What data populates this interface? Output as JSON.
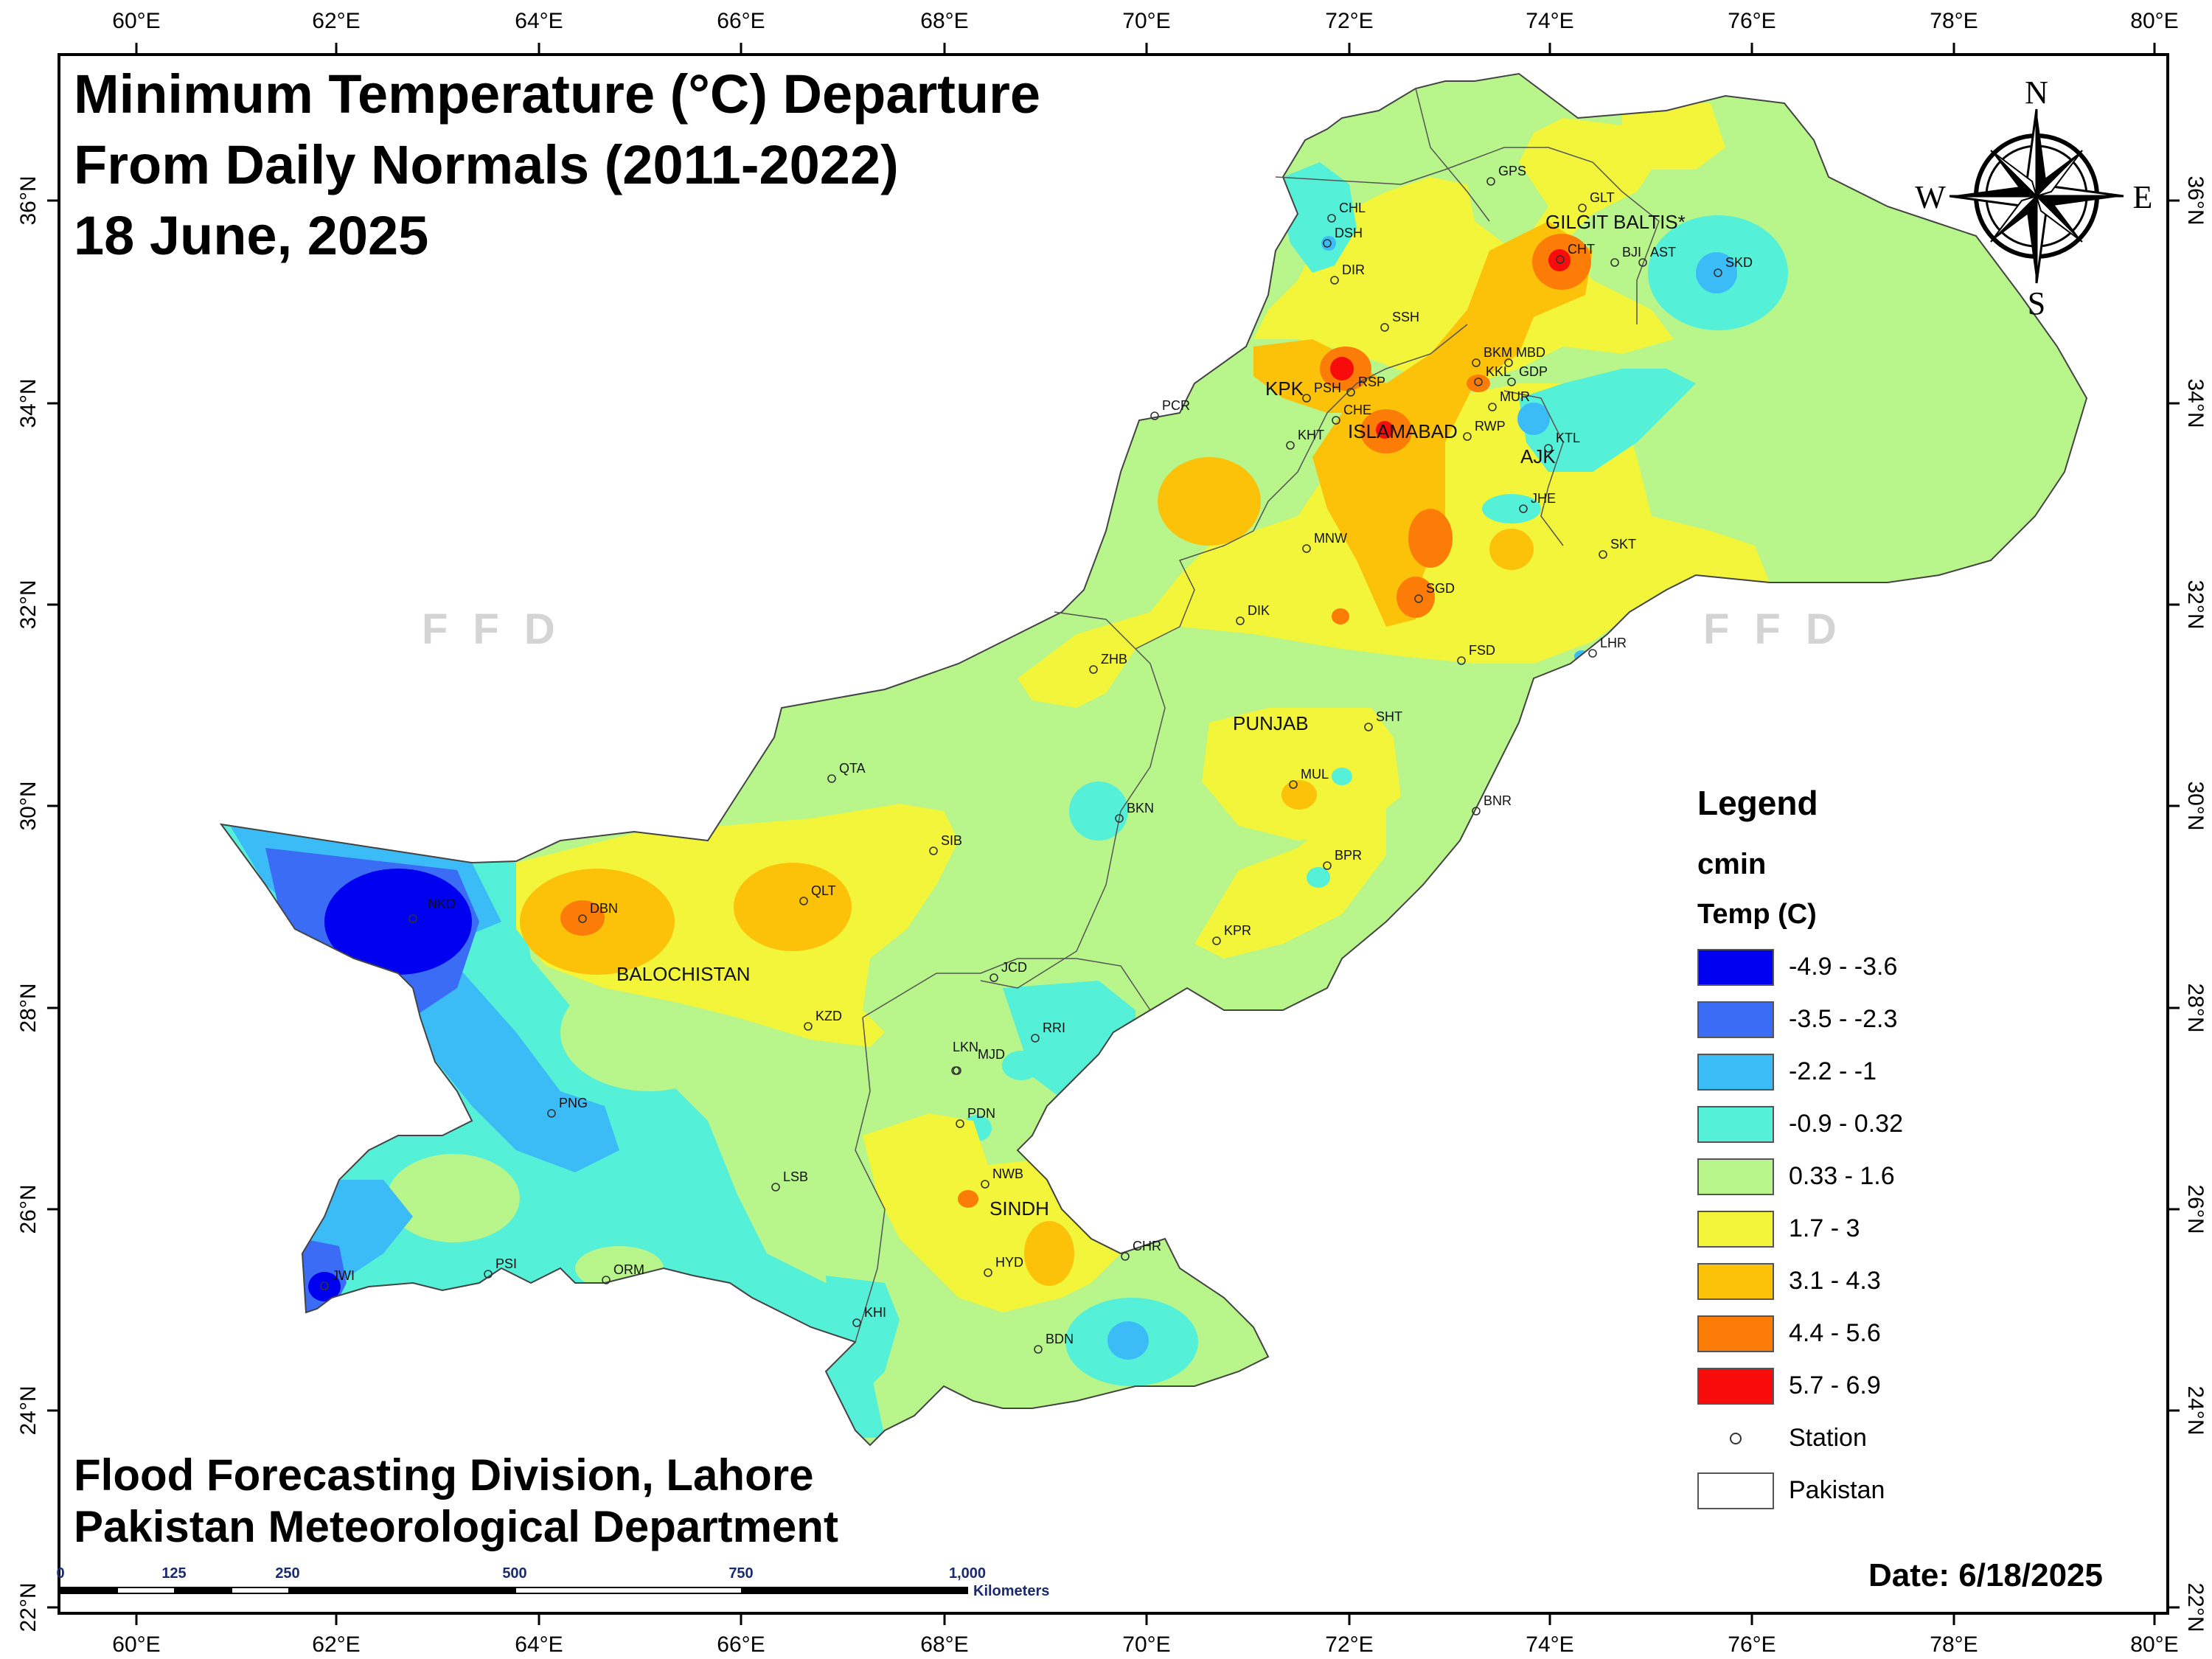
{
  "title_lines": [
    "Minimum Temperature (°C) Departure",
    "From Daily Normals (2011-2022)",
    "18 June, 2025"
  ],
  "credits": [
    "Flood Forecasting Division, Lahore",
    "Pakistan Meteorological Department"
  ],
  "date_label": "Date: 6/18/2025",
  "watermark": "FFD",
  "axes": {
    "lon_labels": [
      "60°E",
      "62°E",
      "64°E",
      "66°E",
      "68°E",
      "70°E",
      "72°E",
      "74°E",
      "76°E",
      "78°E",
      "80°E"
    ],
    "lat_labels": [
      "36°N",
      "34°N",
      "32°N",
      "30°N",
      "28°N",
      "26°N",
      "24°N",
      "22°N"
    ]
  },
  "north_arrow": {
    "n": "N",
    "s": "S",
    "e": "E",
    "w": "W"
  },
  "legend": {
    "title": "Legend",
    "field": "cmin",
    "unit": "Temp (C)",
    "classes": [
      {
        "label": "-4.9 - -3.6",
        "color": "#0000f0"
      },
      {
        "label": "-3.5 - -2.3",
        "color": "#3a6cf5"
      },
      {
        "label": "-2.2 - -1",
        "color": "#3cbcf6"
      },
      {
        "label": "-0.9 - 0.32",
        "color": "#55f0d8"
      },
      {
        "label": "0.33 - 1.6",
        "color": "#b8f58a"
      },
      {
        "label": "1.7 - 3",
        "color": "#f2f53a"
      },
      {
        "label": "3.1 - 4.3",
        "color": "#fcc20a"
      },
      {
        "label": "4.4 - 5.6",
        "color": "#fb7d08"
      },
      {
        "label": "5.7 - 6.9",
        "color": "#f80b0b"
      }
    ],
    "station_label": "Station",
    "boundary_label": "Pakistan"
  },
  "scale_bar": {
    "labels": [
      "0",
      "125",
      "250",
      "500",
      "750",
      "1,000"
    ],
    "unit": "Kilometers"
  },
  "regions": [
    "GILGIT BALTIS*",
    "KPK",
    "ISLAMABAD",
    "AJK",
    "PUNJAB",
    "BALOCHISTAN",
    "SINDH"
  ],
  "stations": [
    "GPS",
    "GLT",
    "CHL",
    "DSH",
    "CHT",
    "BJI",
    "AST",
    "SKD",
    "DIR",
    "SSH",
    "BKM",
    "MBD",
    "KKL",
    "GDP",
    "PSH",
    "RSP",
    "CHE",
    "MUR",
    "RWP",
    "KTL",
    "PCR",
    "KHT",
    "JHE",
    "MNW",
    "SKT",
    "SGD",
    "DIK",
    "FSD",
    "LHR",
    "ZHB",
    "SHT",
    "QTA",
    "MUL",
    "BKN",
    "BNR",
    "SIB",
    "BPR",
    "QLT",
    "DBN",
    "NKD",
    "KPR",
    "JCD",
    "KZD",
    "LKN",
    "RRI",
    "MJD",
    "PDN",
    "PNG",
    "NWB",
    "LSB",
    "SINDH",
    "PSI",
    "ORM",
    "HYD",
    "CHR",
    "JWI",
    "KHI",
    "BDN"
  ]
}
